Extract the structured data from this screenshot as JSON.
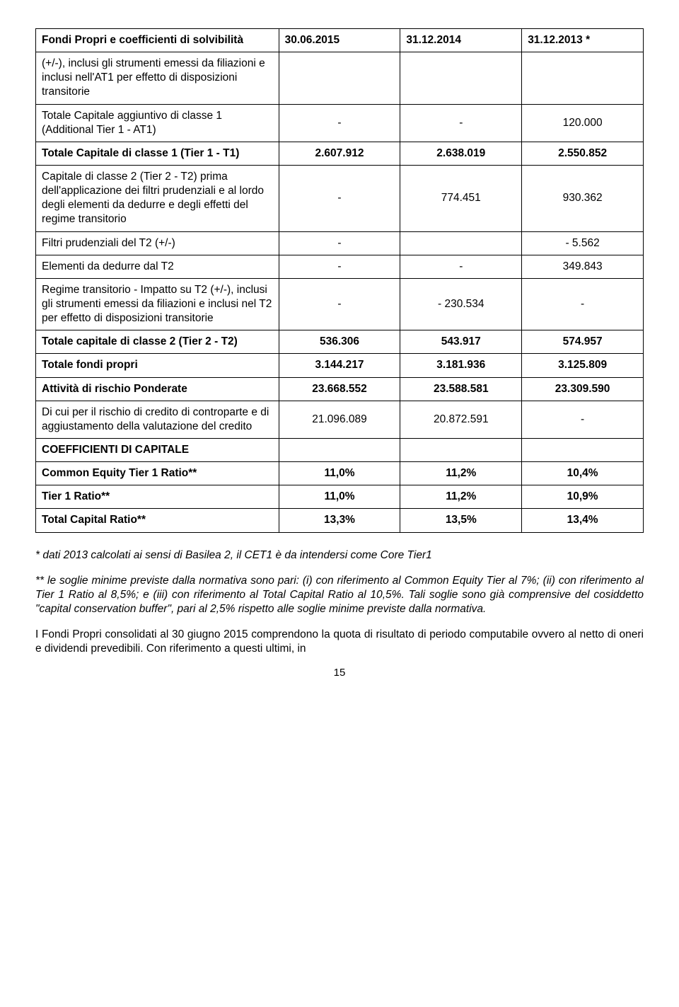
{
  "table": {
    "header": {
      "c0": "Fondi Propri e coefficienti di solvibilità",
      "c1": "30.06.2015",
      "c2": "31.12.2014",
      "c3": "31.12.2013 *"
    },
    "rows": [
      {
        "label": "(+/-), inclusi gli strumenti emessi da filiazioni e inclusi nell'AT1 per effetto di disposizioni transitorie",
        "c1": "",
        "c2": "",
        "c3": "",
        "bold": false
      },
      {
        "label": "Totale Capitale aggiuntivo di classe 1 (Additional Tier 1 - AT1)",
        "c1": "-",
        "c2": "-",
        "c3": "120.000",
        "bold": false
      },
      {
        "label": "Totale Capitale di classe 1 (Tier 1 - T1)",
        "c1": "2.607.912",
        "c2": "2.638.019",
        "c3": "2.550.852",
        "bold": true
      },
      {
        "label": "Capitale di classe 2 (Tier 2 - T2) prima dell'applicazione dei filtri prudenziali e al lordo degli elementi da dedurre e degli effetti del regime transitorio",
        "c1": "-",
        "c2": "774.451",
        "c3": "930.362",
        "bold": false
      },
      {
        "label": "Filtri prudenziali del T2 (+/-)",
        "c1": "-",
        "c2": "",
        "c3": "- 5.562",
        "bold": false
      },
      {
        "label": "Elementi da dedurre dal T2",
        "c1": "-",
        "c2": "-",
        "c3": "349.843",
        "bold": false
      },
      {
        "label": "Regime transitorio - Impatto su T2 (+/-), inclusi gli strumenti emessi da filiazioni e inclusi nel T2 per effetto di disposizioni transitorie",
        "c1": "-",
        "c2": "- 230.534",
        "c3": "-",
        "bold": false
      },
      {
        "label": "Totale capitale di classe 2 (Tier 2 - T2)",
        "c1": "536.306",
        "c2": "543.917",
        "c3": "574.957",
        "bold": true
      },
      {
        "label": "Totale fondi propri",
        "c1": "3.144.217",
        "c2": "3.181.936",
        "c3": "3.125.809",
        "bold": true
      },
      {
        "label": "Attività di rischio Ponderate",
        "c1": "23.668.552",
        "c2": "23.588.581",
        "c3": "23.309.590",
        "bold": true
      },
      {
        "label": "Di cui per il rischio di credito di controparte e di aggiustamento della valutazione del credito",
        "c1": "21.096.089",
        "c2": "20.872.591",
        "c3": "-",
        "bold": false
      },
      {
        "label": "COEFFICIENTI DI CAPITALE",
        "c1": "",
        "c2": "",
        "c3": "",
        "bold": true
      },
      {
        "label": "Common Equity Tier 1 Ratio**",
        "c1": "11,0%",
        "c2": "11,2%",
        "c3": "10,4%",
        "bold": true
      },
      {
        "label": "Tier 1 Ratio**",
        "c1": "11,0%",
        "c2": "11,2%",
        "c3": "10,9%",
        "bold": true
      },
      {
        "label": "Total Capital Ratio**",
        "c1": "13,3%",
        "c2": "13,5%",
        "c3": "13,4%",
        "bold": true
      }
    ]
  },
  "notes": {
    "n1": "* dati 2013 calcolati ai sensi di Basilea 2, il CET1 è da intendersi come Core Tier1",
    "n2": "** le soglie minime previste dalla normativa sono pari: (i) con riferimento al Common Equity Tier al 7%; (ii) con riferimento al Tier 1 Ratio al 8,5%; e (iii) con riferimento al Total Capital Ratio al 10,5%. Tali soglie sono già comprensive del cosiddetto \"capital conservation buffer\", pari al 2,5% rispetto alle soglie minime previste dalla normativa.",
    "n3": "I Fondi Propri consolidati al 30 giugno 2015 comprendono la quota di risultato di periodo computabile ovvero al netto di oneri e dividendi prevedibili. Con riferimento a questi ultimi, in"
  },
  "page": "15"
}
